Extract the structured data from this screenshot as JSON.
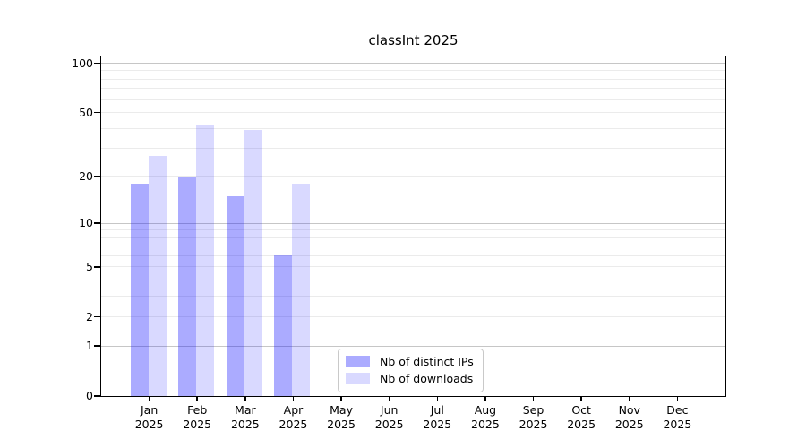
{
  "chart_data": {
    "type": "bar",
    "title": "classInt 2025",
    "categories": [
      "Jan",
      "Feb",
      "Mar",
      "Apr",
      "May",
      "Jun",
      "Jul",
      "Aug",
      "Sep",
      "Oct",
      "Nov",
      "Dec"
    ],
    "year": "2025",
    "series": [
      {
        "name": "Nb of distinct IPs",
        "color": "rgba(0,0,255,0.33)",
        "values": [
          18,
          20,
          15,
          6,
          null,
          null,
          null,
          null,
          null,
          null,
          null,
          null
        ]
      },
      {
        "name": "Nb of downloads",
        "color": "rgba(0,0,255,0.15)",
        "values": [
          27,
          42,
          39,
          18,
          null,
          null,
          null,
          null,
          null,
          null,
          null,
          null
        ]
      }
    ],
    "yscale": "log10(1+y)",
    "yticks": [
      0,
      1,
      2,
      5,
      10,
      20,
      50,
      100
    ],
    "ylim": [
      0,
      110
    ],
    "xlabel": "",
    "ylabel": "",
    "grid": {
      "major_values": [
        1,
        10,
        100
      ],
      "minor_values": [
        2,
        3,
        4,
        5,
        6,
        7,
        8,
        9,
        20,
        30,
        40,
        50,
        60,
        70,
        80,
        90
      ],
      "major_color": "#c6c6c6",
      "minor_color": "#ebebeb"
    },
    "legend_position": "bottom-center",
    "colors": {
      "axis": "#000000",
      "background": "#ffffff"
    }
  }
}
